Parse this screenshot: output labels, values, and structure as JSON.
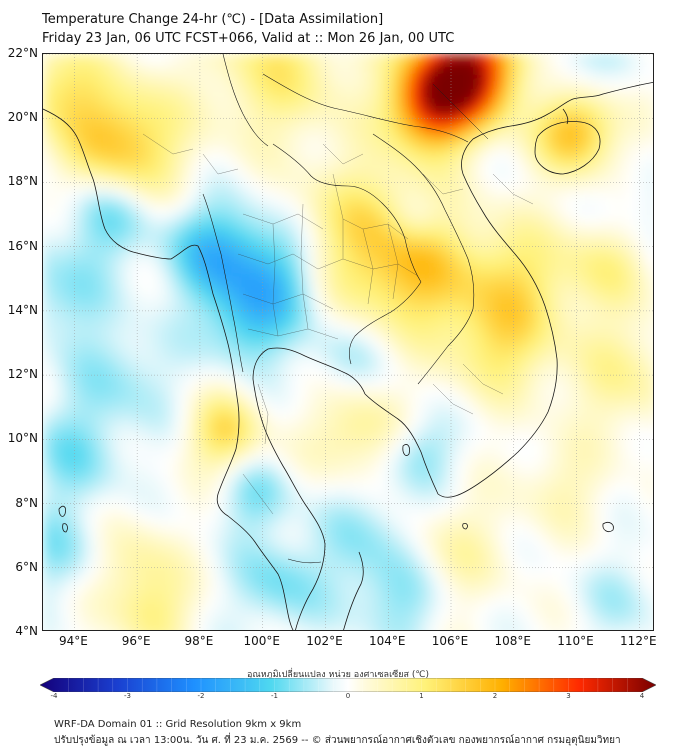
{
  "header": {
    "title_line1": "Temperature Change 24-hr (℃) - [Data Assimilation]",
    "title_line2": "Friday 23 Jan, 06 UTC FCST+066, Valid at :: Mon 26 Jan, 00 UTC"
  },
  "map": {
    "lon_range": [
      93,
      112.5
    ],
    "lat_range": [
      4,
      22
    ],
    "lat_labels": [
      "4°N",
      "6°N",
      "8°N",
      "10°N",
      "12°N",
      "14°N",
      "16°N",
      "18°N",
      "20°N",
      "22°N"
    ],
    "lat_values": [
      4,
      6,
      8,
      10,
      12,
      14,
      16,
      18,
      20,
      22
    ],
    "lon_labels": [
      "94°E",
      "96°E",
      "98°E",
      "100°E",
      "102°E",
      "104°E",
      "106°E",
      "108°E",
      "110°E",
      "112°E"
    ],
    "lon_values": [
      94,
      96,
      98,
      100,
      102,
      104,
      106,
      108,
      110,
      112
    ],
    "temperature_anomalies": [
      {
        "lon": 106.0,
        "lat": 21.2,
        "value": 3.0,
        "spread": 1.1
      },
      {
        "lon": 105.3,
        "lat": 20.2,
        "value": 1.8,
        "spread": 0.9
      },
      {
        "lon": 107.0,
        "lat": 21.6,
        "value": 1.6,
        "spread": 1.0
      },
      {
        "lon": 110.0,
        "lat": 19.6,
        "value": 1.8,
        "spread": 0.9
      },
      {
        "lon": 95.5,
        "lat": 19.2,
        "value": 1.7,
        "spread": 1.3
      },
      {
        "lon": 93.5,
        "lat": 21.0,
        "value": 1.0,
        "spread": 1.0
      },
      {
        "lon": 100.5,
        "lat": 21.5,
        "value": 1.0,
        "spread": 1.5
      },
      {
        "lon": 103.5,
        "lat": 16.3,
        "value": 1.3,
        "spread": 1.6
      },
      {
        "lon": 105.0,
        "lat": 15.0,
        "value": 1.0,
        "spread": 1.2
      },
      {
        "lon": 108.0,
        "lat": 15.0,
        "value": 1.0,
        "spread": 1.3
      },
      {
        "lon": 107.5,
        "lat": 13.0,
        "value": 1.0,
        "spread": 1.2
      },
      {
        "lon": 98.8,
        "lat": 10.2,
        "value": 1.3,
        "spread": 0.8
      },
      {
        "lon": 103.0,
        "lat": 10.2,
        "value": 0.9,
        "spread": 1.0
      },
      {
        "lon": 111.5,
        "lat": 12.0,
        "value": 0.7,
        "spread": 1.3
      },
      {
        "lon": 111.0,
        "lat": 15.5,
        "value": 0.8,
        "spread": 1.0
      },
      {
        "lon": 96.0,
        "lat": 6.0,
        "value": 0.7,
        "spread": 1.0
      },
      {
        "lon": 96.5,
        "lat": 4.5,
        "value": 0.8,
        "spread": 0.8
      },
      {
        "lon": 106.0,
        "lat": 6.5,
        "value": 0.6,
        "spread": 1.2
      },
      {
        "lon": 109.5,
        "lat": 8.5,
        "value": 0.5,
        "spread": 1.0
      },
      {
        "lon": 98.5,
        "lat": 15.8,
        "value": -1.3,
        "spread": 1.1
      },
      {
        "lon": 100.3,
        "lat": 15.0,
        "value": -1.2,
        "spread": 1.1
      },
      {
        "lon": 95.0,
        "lat": 17.0,
        "value": -1.0,
        "spread": 1.0
      },
      {
        "lon": 93.5,
        "lat": 14.5,
        "value": -0.7,
        "spread": 1.0
      },
      {
        "lon": 99.5,
        "lat": 13.5,
        "value": -0.9,
        "spread": 0.9
      },
      {
        "lon": 95.5,
        "lat": 12.0,
        "value": -0.6,
        "spread": 1.2
      },
      {
        "lon": 94.0,
        "lat": 9.5,
        "value": -0.7,
        "spread": 1.1
      },
      {
        "lon": 99.8,
        "lat": 8.2,
        "value": -0.7,
        "spread": 0.8
      },
      {
        "lon": 100.5,
        "lat": 5.5,
        "value": -0.8,
        "spread": 1.0
      },
      {
        "lon": 103.5,
        "lat": 7.0,
        "value": -0.6,
        "spread": 1.2
      },
      {
        "lon": 104.3,
        "lat": 5.0,
        "value": -0.7,
        "spread": 1.0
      },
      {
        "lon": 105.0,
        "lat": 9.6,
        "value": -0.7,
        "spread": 0.8
      },
      {
        "lon": 102.5,
        "lat": 12.5,
        "value": -0.5,
        "spread": 0.9
      },
      {
        "lon": 104.8,
        "lat": 16.8,
        "value": -0.6,
        "spread": 0.6
      },
      {
        "lon": 110.0,
        "lat": 21.5,
        "value": -0.5,
        "spread": 0.9
      },
      {
        "lon": 112.0,
        "lat": 17.0,
        "value": -0.4,
        "spread": 1.0
      },
      {
        "lon": 93.5,
        "lat": 6.5,
        "value": -0.6,
        "spread": 1.0
      },
      {
        "lon": 111.5,
        "lat": 5.0,
        "value": -0.4,
        "spread": 1.0
      }
    ]
  },
  "colorbar": {
    "title": "อุณหภูมิเปลี่ยนแปลง หน่วย องศาเซลเซียส (℃)",
    "min": -4,
    "max": 4,
    "ticks": [
      "-4",
      "-3",
      "-2",
      "-1",
      "0",
      "1",
      "2",
      "3",
      "4"
    ],
    "tick_values": [
      -4,
      -3,
      -2,
      -1,
      0,
      1,
      2,
      3,
      4
    ],
    "stops": [
      {
        "value": -4,
        "color": "#14007a"
      },
      {
        "value": -3,
        "color": "#1a3fd0"
      },
      {
        "value": -2,
        "color": "#1e90ff"
      },
      {
        "value": -1,
        "color": "#4fd8f0"
      },
      {
        "value": -0.2,
        "color": "#e8f8fb"
      },
      {
        "value": 0,
        "color": "#ffffff"
      },
      {
        "value": 0.2,
        "color": "#fffbe0"
      },
      {
        "value": 1,
        "color": "#fff27a"
      },
      {
        "value": 2,
        "color": "#ffb000"
      },
      {
        "value": 3,
        "color": "#ff2a00"
      },
      {
        "value": 4,
        "color": "#7a0000"
      }
    ]
  },
  "footer": {
    "line1": "WRF-DA Domain 01 :: Grid Resolution 9km x 9km",
    "line2": "ปรับปรุงข้อมูล ณ เวลา 13:00น. วัน ศ. ที่ 23 ม.ค. 2569 -- © ส่วนพยากรณ์อากาศเชิงตัวเลข กองพยากรณ์อากาศ กรมอุตุนิยมวิทยา"
  }
}
